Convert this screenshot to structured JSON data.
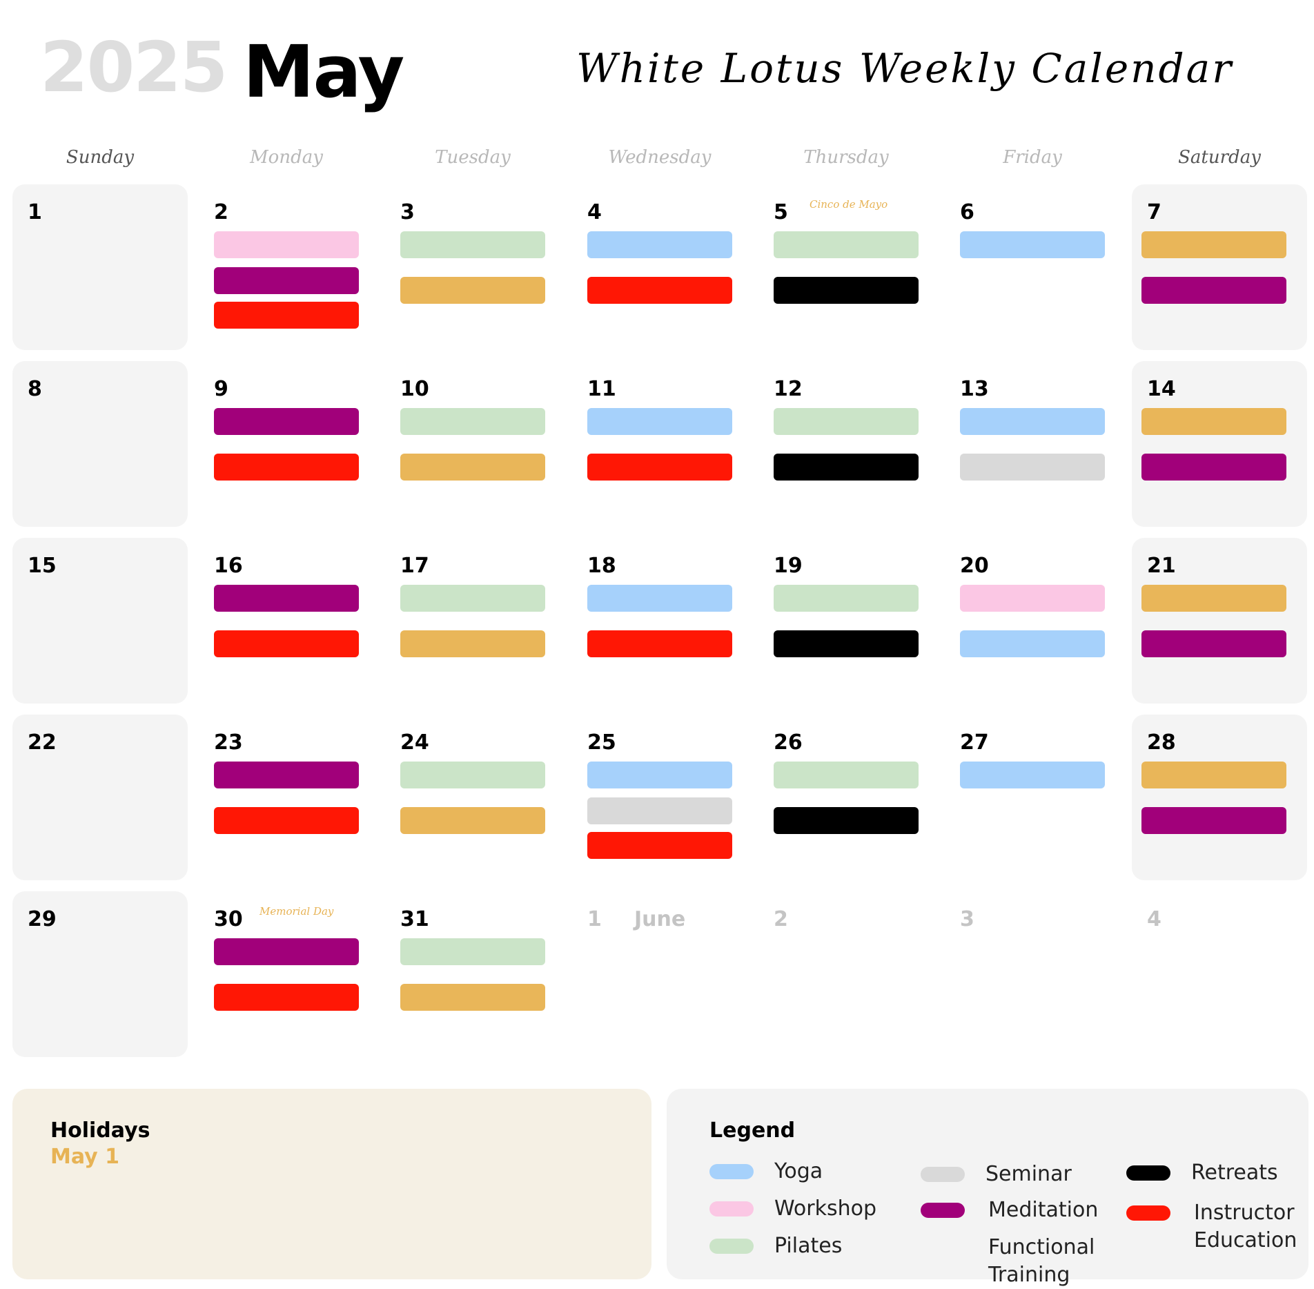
{
  "header": {
    "year": "2025",
    "month": "May",
    "title": "White Lotus Weekly Calendar"
  },
  "colors": {
    "yoga": "#a6d1fb",
    "workshop": "#fbc7e4",
    "pilates": "#cbe4c8",
    "seminar": "#d9d9d9",
    "meditation": "#a1007a",
    "functional_training": "#e9b659",
    "retreats": "#000000",
    "instructor_education": "#ff1705"
  },
  "weekdays": [
    "Sunday",
    "Monday",
    "Tuesday",
    "Wednesday",
    "Thursday",
    "Friday",
    "Saturday"
  ],
  "weeks": [
    [
      {
        "day": "1",
        "events": []
      },
      {
        "day": "2",
        "events": [
          "workshop",
          "meditation",
          "instructor_education"
        ]
      },
      {
        "day": "3",
        "events": [
          "pilates",
          "functional_training"
        ]
      },
      {
        "day": "4",
        "events": [
          "yoga",
          "instructor_education"
        ]
      },
      {
        "day": "5",
        "note": "Cinco de Mayo",
        "events": [
          "pilates",
          "retreats"
        ]
      },
      {
        "day": "6",
        "events": [
          "yoga"
        ]
      },
      {
        "day": "7",
        "events": [
          "functional_training",
          "meditation"
        ]
      }
    ],
    [
      {
        "day": "8",
        "events": []
      },
      {
        "day": "9",
        "events": [
          "meditation",
          "instructor_education"
        ]
      },
      {
        "day": "10",
        "events": [
          "pilates",
          "functional_training"
        ]
      },
      {
        "day": "11",
        "events": [
          "yoga",
          "instructor_education"
        ]
      },
      {
        "day": "12",
        "events": [
          "pilates",
          "retreats"
        ]
      },
      {
        "day": "13",
        "events": [
          "yoga",
          "seminar"
        ]
      },
      {
        "day": "14",
        "events": [
          "functional_training",
          "meditation"
        ]
      }
    ],
    [
      {
        "day": "15",
        "events": []
      },
      {
        "day": "16",
        "events": [
          "meditation",
          "instructor_education"
        ]
      },
      {
        "day": "17",
        "events": [
          "pilates",
          "functional_training"
        ]
      },
      {
        "day": "18",
        "events": [
          "yoga",
          "instructor_education"
        ]
      },
      {
        "day": "19",
        "events": [
          "pilates",
          "retreats"
        ]
      },
      {
        "day": "20",
        "events": [
          "workshop",
          "yoga"
        ]
      },
      {
        "day": "21",
        "events": [
          "functional_training",
          "meditation"
        ]
      }
    ],
    [
      {
        "day": "22",
        "events": []
      },
      {
        "day": "23",
        "events": [
          "meditation",
          "instructor_education"
        ]
      },
      {
        "day": "24",
        "events": [
          "pilates",
          "functional_training"
        ]
      },
      {
        "day": "25",
        "events": [
          "yoga",
          "seminar",
          "instructor_education"
        ]
      },
      {
        "day": "26",
        "events": [
          "pilates",
          "retreats"
        ]
      },
      {
        "day": "27",
        "events": [
          "yoga"
        ]
      },
      {
        "day": "28",
        "events": [
          "functional_training",
          "meditation"
        ]
      }
    ],
    [
      {
        "day": "29",
        "events": []
      },
      {
        "day": "30",
        "note": "Memorial Day",
        "events": [
          "meditation",
          "instructor_education"
        ]
      },
      {
        "day": "31",
        "events": [
          "pilates",
          "functional_training"
        ]
      },
      {
        "day": "1",
        "next_month": true,
        "month_label": "June",
        "events": []
      },
      {
        "day": "2",
        "next_month": true,
        "events": []
      },
      {
        "day": "3",
        "next_month": true,
        "events": []
      },
      {
        "day": "4",
        "next_month": true,
        "events": []
      }
    ]
  ],
  "holidays": {
    "title": "Holidays",
    "items": [
      "May 1"
    ]
  },
  "legend": {
    "title": "Legend",
    "items": [
      {
        "key": "yoga",
        "label": "Yoga"
      },
      {
        "key": "workshop",
        "label": "Workshop"
      },
      {
        "key": "pilates",
        "label": "Pilates"
      },
      {
        "key": "seminar",
        "label": "Seminar"
      },
      {
        "key": "meditation",
        "label": "Meditation"
      },
      {
        "key": "functional_training",
        "label": "Functional Training"
      },
      {
        "key": "retreats",
        "label": "Retreats"
      },
      {
        "key": "instructor_education",
        "label": "Instructor Education"
      }
    ]
  }
}
